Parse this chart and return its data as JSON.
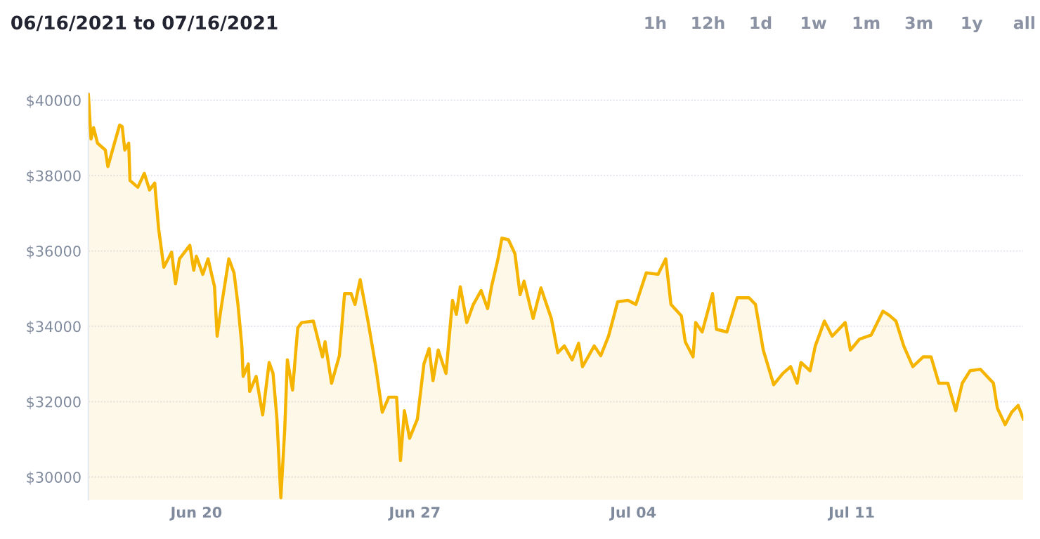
{
  "chart_data": {
    "type": "area",
    "title": "06/16/2021 to 07/16/2021",
    "annotations": [
      "1h",
      "12h",
      "1d",
      "1w",
      "1m",
      "3m",
      "1y",
      "all"
    ],
    "x": [
      "2021-06-16T13:00",
      "2021-06-16T15:00",
      "2021-06-16T17:00",
      "2021-06-16T20:00",
      "2021-06-17T02:00",
      "2021-06-17T04:00",
      "2021-06-17T09:00",
      "2021-06-17T13:00",
      "2021-06-17T15:00",
      "2021-06-17T17:00",
      "2021-06-17T20:00",
      "2021-06-17T21:00",
      "2021-06-18T03:00",
      "2021-06-18T08:00",
      "2021-06-18T12:00",
      "2021-06-18T16:00",
      "2021-06-18T19:00",
      "2021-06-18T23:00",
      "2021-06-19T05:00",
      "2021-06-19T08:00",
      "2021-06-19T11:00",
      "2021-06-19T19:00",
      "2021-06-19T22:00",
      "2021-06-20T00:00",
      "2021-06-20T05:00",
      "2021-06-20T09:00",
      "2021-06-20T14:00",
      "2021-06-20T16:00",
      "2021-06-20T19:00",
      "2021-06-21T01:00",
      "2021-06-21T05:00",
      "2021-06-21T08:00",
      "2021-06-21T11:00",
      "2021-06-21T12:00",
      "2021-06-21T16:00",
      "2021-06-21T17:00",
      "2021-06-21T22:00",
      "2021-06-22T03:00",
      "2021-06-22T08:00",
      "2021-06-22T11:00",
      "2021-06-22T14:00",
      "2021-06-22T17:00",
      "2021-06-22T20:00",
      "2021-06-22T22:00",
      "2021-06-23T02:00",
      "2021-06-23T06:00",
      "2021-06-23T09:00",
      "2021-06-23T18:00",
      "2021-06-24T01:00",
      "2021-06-24T03:00",
      "2021-06-24T08:00",
      "2021-06-24T14:00",
      "2021-06-24T18:00",
      "2021-06-24T23:00",
      "2021-06-25T02:00",
      "2021-06-25T06:00",
      "2021-06-25T12:00",
      "2021-06-25T18:00",
      "2021-06-25T23:00",
      "2021-06-26T04:00",
      "2021-06-26T10:00",
      "2021-06-26T13:00",
      "2021-06-26T16:00",
      "2021-06-26T20:00",
      "2021-06-27T02:00",
      "2021-06-27T07:00",
      "2021-06-27T11:00",
      "2021-06-27T14:00",
      "2021-06-27T18:00",
      "2021-06-28T00:00",
      "2021-06-28T05:00",
      "2021-06-28T08:00",
      "2021-06-28T11:00",
      "2021-06-28T16:00",
      "2021-06-28T21:00",
      "2021-06-29T03:00",
      "2021-06-29T08:00",
      "2021-06-29T11:00",
      "2021-06-29T16:00",
      "2021-06-29T19:00",
      "2021-06-30T00:00",
      "2021-06-30T05:00",
      "2021-06-30T09:00",
      "2021-06-30T12:00",
      "2021-06-30T19:00",
      "2021-07-01T01:00",
      "2021-07-01T09:00",
      "2021-07-01T14:00",
      "2021-07-01T19:00",
      "2021-07-02T01:00",
      "2021-07-02T06:00",
      "2021-07-02T09:00",
      "2021-07-02T18:00",
      "2021-07-02T23:00",
      "2021-07-03T05:00",
      "2021-07-03T12:00",
      "2021-07-03T20:00",
      "2021-07-04T02:00",
      "2021-07-04T10:00",
      "2021-07-04T19:00",
      "2021-07-05T01:00",
      "2021-07-05T05:00",
      "2021-07-05T13:00",
      "2021-07-05T16:00",
      "2021-07-05T22:00",
      "2021-07-06T00:00",
      "2021-07-06T05:00",
      "2021-07-06T13:00",
      "2021-07-06T16:00",
      "2021-07-07T00:00",
      "2021-07-07T08:00",
      "2021-07-07T17:00",
      "2021-07-07T22:00",
      "2021-07-08T04:00",
      "2021-07-08T12:00",
      "2021-07-08T19:00",
      "2021-07-09T01:00",
      "2021-07-09T06:00",
      "2021-07-09T09:00",
      "2021-07-09T16:00",
      "2021-07-09T20:00",
      "2021-07-10T03:00",
      "2021-07-10T09:00",
      "2021-07-10T19:00",
      "2021-07-10T23:00",
      "2021-07-11T06:00",
      "2021-07-11T15:00",
      "2021-07-12T00:00",
      "2021-07-12T05:00",
      "2021-07-12T10:00",
      "2021-07-12T16:00",
      "2021-07-12T23:00",
      "2021-07-13T07:00",
      "2021-07-13T13:00",
      "2021-07-13T19:00",
      "2021-07-14T02:00",
      "2021-07-14T08:00",
      "2021-07-14T13:00",
      "2021-07-14T19:00",
      "2021-07-15T03:00",
      "2021-07-15T13:00",
      "2021-07-15T16:00",
      "2021-07-15T22:00",
      "2021-07-16T03:00",
      "2021-07-16T08:00",
      "2021-07-16T12:00"
    ],
    "series": [
      {
        "color": "#f5b400",
        "values": [
          40150,
          38970,
          39270,
          38860,
          38680,
          38240,
          38860,
          39340,
          39300,
          38680,
          38860,
          37870,
          37690,
          38060,
          37620,
          37800,
          36590,
          35570,
          35970,
          35130,
          35790,
          36150,
          35490,
          35860,
          35380,
          35790,
          35050,
          33740,
          34470,
          35790,
          35420,
          34580,
          33480,
          32670,
          33000,
          32270,
          32670,
          31650,
          33040,
          32750,
          31540,
          29450,
          31280,
          33110,
          32310,
          33960,
          34100,
          34140,
          33190,
          33590,
          32490,
          33220,
          34870,
          34870,
          34580,
          35240,
          34140,
          32930,
          31720,
          32120,
          32120,
          30440,
          31760,
          31030,
          31540,
          33000,
          33410,
          32560,
          33370,
          32750,
          34690,
          34320,
          35050,
          34100,
          34580,
          34950,
          34470,
          35050,
          35790,
          36340,
          36300,
          35930,
          34840,
          35200,
          34210,
          35020,
          34210,
          33300,
          33480,
          33110,
          33550,
          32930,
          33480,
          33220,
          33740,
          34650,
          34690,
          34580,
          35420,
          35380,
          35790,
          34580,
          34280,
          33590,
          33190,
          34100,
          33850,
          34870,
          33920,
          33850,
          34760,
          34760,
          34580,
          33370,
          32450,
          32750,
          32930,
          32490,
          33040,
          32820,
          33480,
          34140,
          33740,
          34100,
          33370,
          33660,
          33770,
          34400,
          34290,
          34140,
          33480,
          32930,
          33190,
          33190,
          32490,
          32490,
          31760,
          32490,
          32820,
          32860,
          32490,
          31830,
          31390,
          31720,
          31900,
          31540
        ]
      }
    ],
    "xlim": [
      "2021-06-16T13:00",
      "2021-07-16T12:00"
    ],
    "xticks": [
      {
        "value": "2021-06-20",
        "label": "Jun 20"
      },
      {
        "value": "2021-06-27",
        "label": "Jun 27"
      },
      {
        "value": "2021-07-04",
        "label": "Jul 04"
      },
      {
        "value": "2021-07-11",
        "label": "Jul 11"
      }
    ],
    "ylim": [
      29400,
      40200
    ],
    "yticks": [
      {
        "value": 30000,
        "label": "$30000"
      },
      {
        "value": 32000,
        "label": "$32000"
      },
      {
        "value": 34000,
        "label": "$34000"
      },
      {
        "value": 36000,
        "label": "$36000"
      },
      {
        "value": 38000,
        "label": "$38000"
      },
      {
        "value": 40000,
        "label": "$40000"
      }
    ],
    "grid": "y"
  }
}
